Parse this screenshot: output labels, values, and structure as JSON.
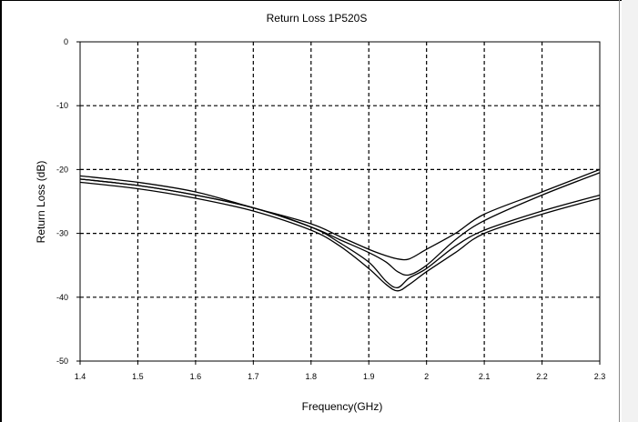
{
  "chart_data": {
    "type": "line",
    "title": "Return Loss 1P520S",
    "xlabel": "Frequency(GHz)",
    "ylabel": "Return Loss (dB)",
    "xlim": [
      1.4,
      2.3
    ],
    "ylim": [
      -50,
      0
    ],
    "xticks": [
      "1.4",
      "1.5",
      "1.6",
      "1.7",
      "1.8",
      "1.9",
      "2",
      "2.1",
      "2.2",
      "2.3"
    ],
    "yticks": [
      "0",
      "-10",
      "-20",
      "-30",
      "-40",
      "-50"
    ],
    "grid": "dashed",
    "legend": "none",
    "series": [
      {
        "x": [
          1.4,
          1.5,
          1.6,
          1.7,
          1.8,
          1.85,
          1.9,
          1.93,
          1.95,
          1.97,
          2.0,
          2.05,
          2.1,
          2.2,
          2.3
        ],
        "values": [
          -21.5,
          -22.5,
          -24.0,
          -26.0,
          -29.0,
          -31.5,
          -34.5,
          -37.5,
          -38.5,
          -37.0,
          -35.5,
          -32.0,
          -29.5,
          -26.5,
          -24.0
        ]
      },
      {
        "x": [
          1.4,
          1.5,
          1.6,
          1.7,
          1.8,
          1.85,
          1.9,
          1.93,
          1.95,
          1.97,
          2.0,
          2.05,
          2.1,
          2.2,
          2.3
        ],
        "values": [
          -22.0,
          -23.0,
          -24.5,
          -26.5,
          -29.5,
          -32.0,
          -35.5,
          -38.0,
          -39.0,
          -38.0,
          -36.0,
          -33.0,
          -30.0,
          -27.0,
          -24.5
        ]
      },
      {
        "x": [
          1.4,
          1.5,
          1.6,
          1.7,
          1.8,
          1.85,
          1.9,
          1.93,
          1.95,
          1.97,
          2.0,
          2.05,
          2.1,
          2.2,
          2.3
        ],
        "values": [
          -21.5,
          -22.5,
          -24.0,
          -26.0,
          -29.0,
          -31.0,
          -33.0,
          -34.5,
          -36.0,
          -36.5,
          -35.0,
          -31.0,
          -28.0,
          -24.0,
          -20.5
        ]
      },
      {
        "x": [
          1.4,
          1.5,
          1.6,
          1.7,
          1.8,
          1.85,
          1.9,
          1.93,
          1.95,
          1.97,
          2.0,
          2.05,
          2.1,
          2.2,
          2.3
        ],
        "values": [
          -21.0,
          -22.0,
          -23.5,
          -26.0,
          -28.5,
          -30.5,
          -32.5,
          -33.5,
          -34.0,
          -34.0,
          -32.5,
          -30.0,
          -27.0,
          -23.5,
          -20.0
        ]
      }
    ]
  }
}
